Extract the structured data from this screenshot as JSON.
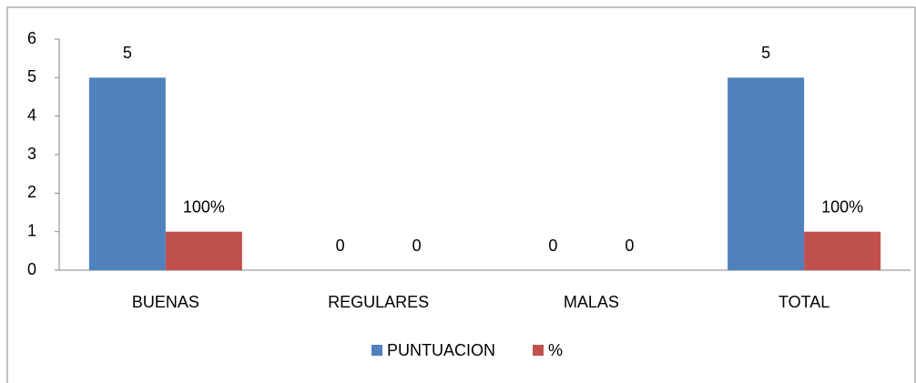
{
  "chart_data": {
    "type": "bar",
    "categories": [
      "BUENAS",
      "REGULARES",
      "MALAS",
      "TOTAL"
    ],
    "series": [
      {
        "name": "PUNTUACION",
        "color": "#4f81bd",
        "values": [
          5,
          0,
          0,
          5
        ]
      },
      {
        "name": "%",
        "color": "#c0504d",
        "values": [
          1,
          0,
          0,
          1
        ],
        "value_labels": [
          "100%",
          "0",
          "0",
          "100%"
        ]
      }
    ],
    "ylim": [
      0,
      6
    ],
    "yticks": [
      0,
      1,
      2,
      3,
      4,
      5,
      6
    ],
    "grid": false,
    "legend": "bottom"
  }
}
